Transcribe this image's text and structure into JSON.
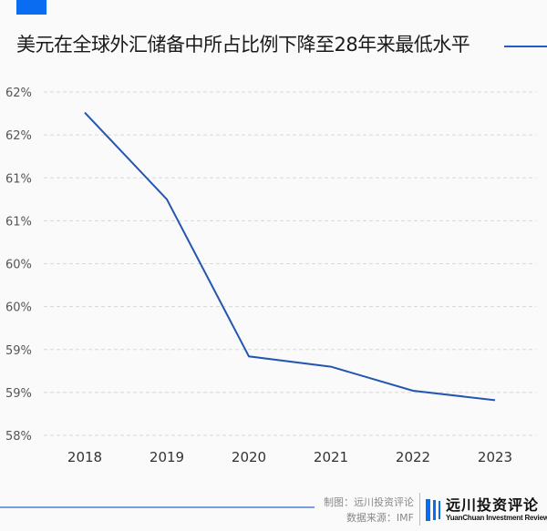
{
  "title": "美元在全球外汇储备中所占比例下降至28年来最低水平",
  "colors": {
    "accent": "#0a6cf0",
    "line": "#2456b0",
    "grid": "#d8d8d8"
  },
  "chart_data": {
    "type": "line",
    "title": "美元在全球外汇储备中所占比例下降至28年来最低水平",
    "categories": [
      "2018",
      "2019",
      "2020",
      "2021",
      "2022",
      "2023"
    ],
    "series": [
      {
        "values": [
          61.76,
          60.75,
          58.92,
          58.8,
          58.52,
          58.41
        ]
      }
    ],
    "ylim": [
      58,
      62
    ],
    "yticks": [
      62,
      61.5,
      61,
      60.5,
      60,
      59.5,
      59,
      58.5,
      58
    ],
    "ytick_labels": [
      "62%",
      "62%",
      "61%",
      "61%",
      "60%",
      "60%",
      "59%",
      "59%",
      "58%"
    ],
    "grid": true,
    "xlabel": "",
    "ylabel": ""
  },
  "footer": {
    "credit": "制图：远川投资评论",
    "source": "数据来源：IMF",
    "logo_cn": "远川投资评论",
    "logo_en": "YuanChuan Investment Review"
  }
}
